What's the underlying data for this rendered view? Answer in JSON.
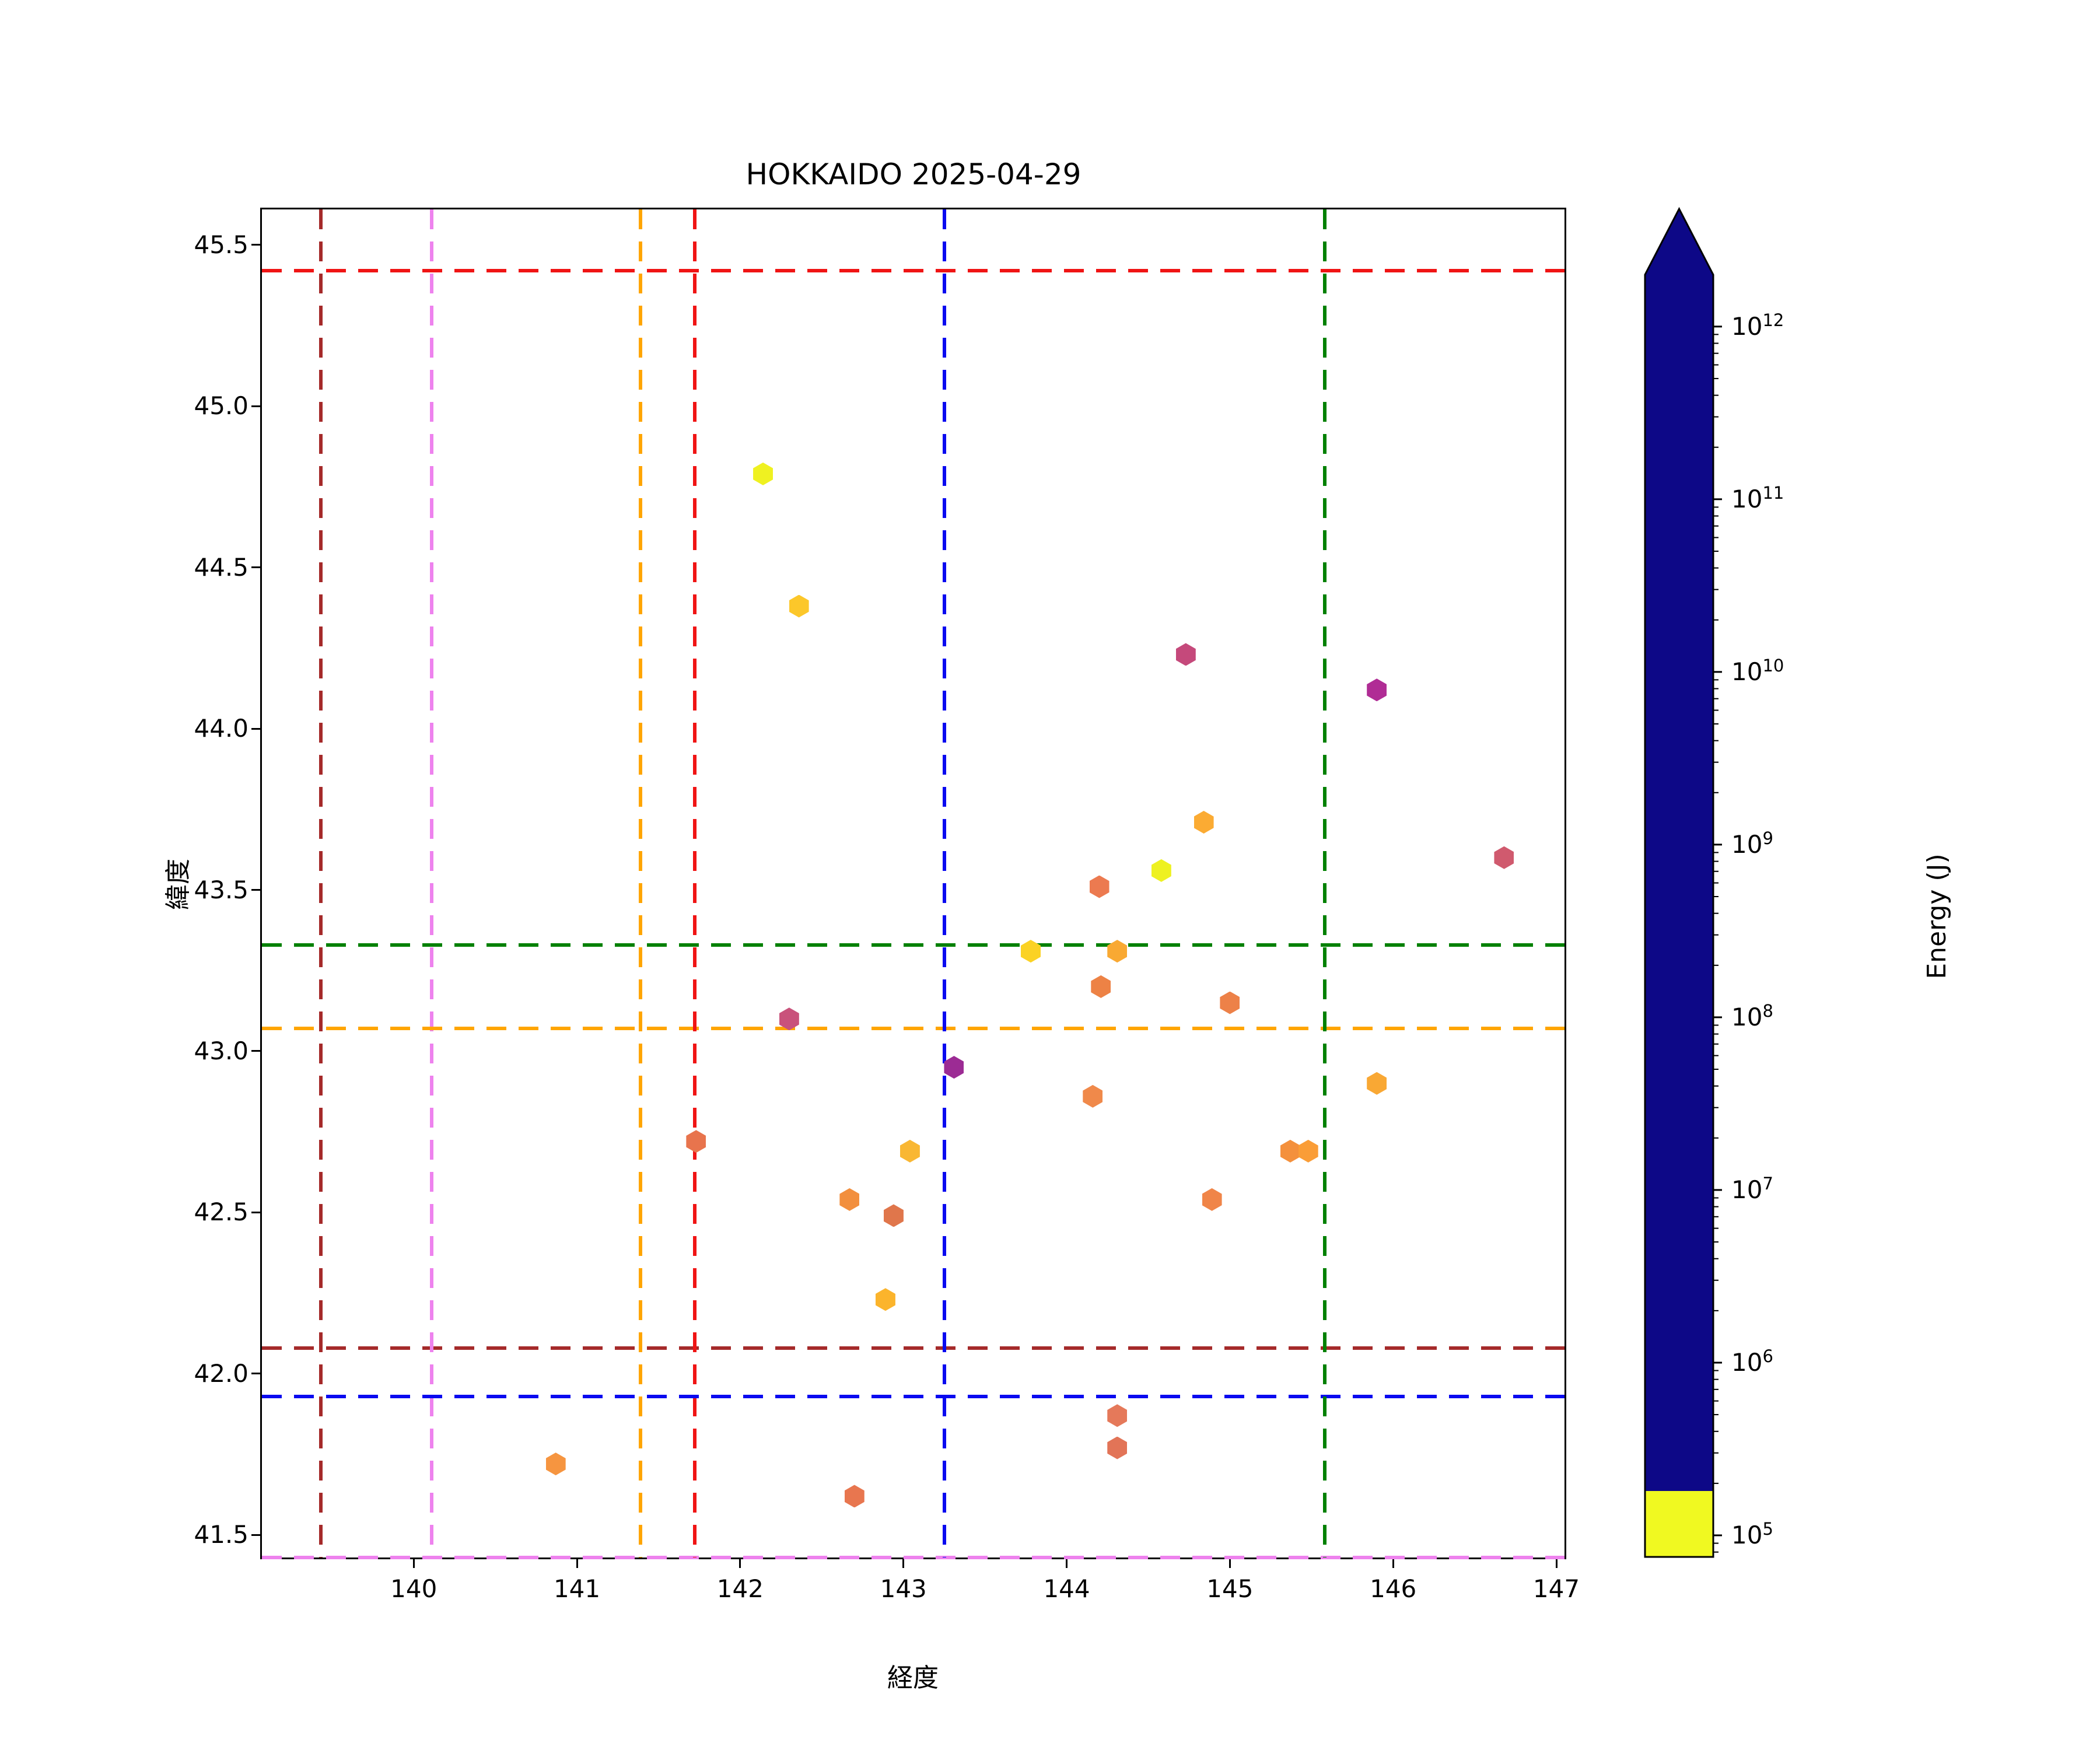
{
  "title": "HOKKAIDO 2025-04-29",
  "axes": {
    "xlabel": "経度",
    "ylabel": "緯度",
    "xlim": [
      139.07,
      147.05
    ],
    "ylim": [
      41.43,
      45.61
    ],
    "xticks": [
      140,
      141,
      142,
      143,
      144,
      145,
      146,
      147
    ],
    "yticks": [
      41.5,
      42.0,
      42.5,
      43.0,
      43.5,
      44.0,
      44.5,
      45.0,
      45.5
    ]
  },
  "colorbar": {
    "label": "Energy (J)",
    "scale": "log",
    "extend": "max",
    "colormap": "plasma_r",
    "tick_exponents": [
      5,
      6,
      7,
      8,
      9,
      10,
      11,
      12
    ],
    "range_log10": [
      4.875,
      12.3
    ],
    "gradient_stops": [
      "#f0f921",
      "#fcce25",
      "#fca636",
      "#f2844b",
      "#e16462",
      "#cc4778",
      "#b12a90",
      "#8f0da4",
      "#6a00a8",
      "#41049d",
      "#0d0887"
    ]
  },
  "reference_lines": [
    {
      "name": "brown-crosshair",
      "color": "#a52a2a",
      "lon": 139.43,
      "lat": 42.08
    },
    {
      "name": "violet-crosshair",
      "color": "#ee82ee",
      "lon": 140.11,
      "lat": 41.43
    },
    {
      "name": "orange-crosshair",
      "color": "#ffa500",
      "lon": 141.39,
      "lat": 43.07
    },
    {
      "name": "red-crosshair",
      "color": "#f01414",
      "lon": 141.72,
      "lat": 45.42
    },
    {
      "name": "blue-crosshair",
      "color": "#0a0af0",
      "lon": 143.25,
      "lat": 41.93
    },
    {
      "name": "green-crosshair",
      "color": "#008000",
      "lon": 145.58,
      "lat": 43.33
    }
  ],
  "chart_data": {
    "type": "scatter",
    "marker": "hexagon",
    "x_field": "lon",
    "y_field": "lat",
    "color_field": "energy_j",
    "points": [
      {
        "lon": 142.14,
        "lat": 44.79,
        "energy_j": 120000.0,
        "color": "#eff121"
      },
      {
        "lon": 142.36,
        "lat": 44.38,
        "energy_j": 600000.0,
        "color": "#fcc72a"
      },
      {
        "lon": 144.73,
        "lat": 44.23,
        "energy_j": 500000000.0,
        "color": "#c5497b"
      },
      {
        "lon": 145.9,
        "lat": 44.12,
        "energy_j": 3000000000.0,
        "color": "#b02c95"
      },
      {
        "lon": 144.84,
        "lat": 43.71,
        "energy_j": 2500000.0,
        "color": "#fbab33"
      },
      {
        "lon": 146.68,
        "lat": 43.6,
        "energy_j": 150000000.0,
        "color": "#d05a6e"
      },
      {
        "lon": 144.58,
        "lat": 43.56,
        "energy_j": 120000.0,
        "color": "#eef121"
      },
      {
        "lon": 144.2,
        "lat": 43.51,
        "energy_j": 12000000.0,
        "color": "#ec7a50"
      },
      {
        "lon": 143.78,
        "lat": 43.31,
        "energy_j": 600000.0,
        "color": "#fbd224"
      },
      {
        "lon": 144.31,
        "lat": 43.31,
        "energy_j": 2000000.0,
        "color": "#f9a933"
      },
      {
        "lon": 144.21,
        "lat": 43.2,
        "energy_j": 7000000.0,
        "color": "#ed8245"
      },
      {
        "lon": 145.0,
        "lat": 43.15,
        "energy_j": 7000000.0,
        "color": "#ed8148"
      },
      {
        "lon": 142.3,
        "lat": 43.1,
        "energy_j": 300000000.0,
        "color": "#c9527b"
      },
      {
        "lon": 143.31,
        "lat": 42.95,
        "energy_j": 10000000000.0,
        "color": "#9c2b94"
      },
      {
        "lon": 144.16,
        "lat": 42.86,
        "energy_j": 5000000.0,
        "color": "#f0894a"
      },
      {
        "lon": 145.9,
        "lat": 42.9,
        "energy_j": 2500000.0,
        "color": "#f9a834"
      },
      {
        "lon": 141.73,
        "lat": 42.72,
        "energy_j": 14000000.0,
        "color": "#e8744d"
      },
      {
        "lon": 145.37,
        "lat": 42.69,
        "energy_j": 3000000.0,
        "color": "#f4903c"
      },
      {
        "lon": 145.48,
        "lat": 42.69,
        "energy_j": 2000000.0,
        "color": "#fa9d37"
      },
      {
        "lon": 143.04,
        "lat": 42.69,
        "energy_j": 1200000.0,
        "color": "#f9b733"
      },
      {
        "lon": 142.67,
        "lat": 42.54,
        "energy_j": 3500000.0,
        "color": "#f28f3e"
      },
      {
        "lon": 144.89,
        "lat": 42.54,
        "energy_j": 6000000.0,
        "color": "#f08548"
      },
      {
        "lon": 142.94,
        "lat": 42.49,
        "energy_j": 13000000.0,
        "color": "#e0764b"
      },
      {
        "lon": 142.89,
        "lat": 42.23,
        "energy_j": 1200000.0,
        "color": "#fbb42c"
      },
      {
        "lon": 144.31,
        "lat": 41.87,
        "energy_j": 20000000.0,
        "color": "#e5795a"
      },
      {
        "lon": 144.31,
        "lat": 41.77,
        "energy_j": 20000000.0,
        "color": "#e27457"
      },
      {
        "lon": 140.87,
        "lat": 41.72,
        "energy_j": 3000000.0,
        "color": "#f69540"
      },
      {
        "lon": 142.7,
        "lat": 41.62,
        "energy_j": 12000000.0,
        "color": "#e8764f"
      }
    ]
  }
}
